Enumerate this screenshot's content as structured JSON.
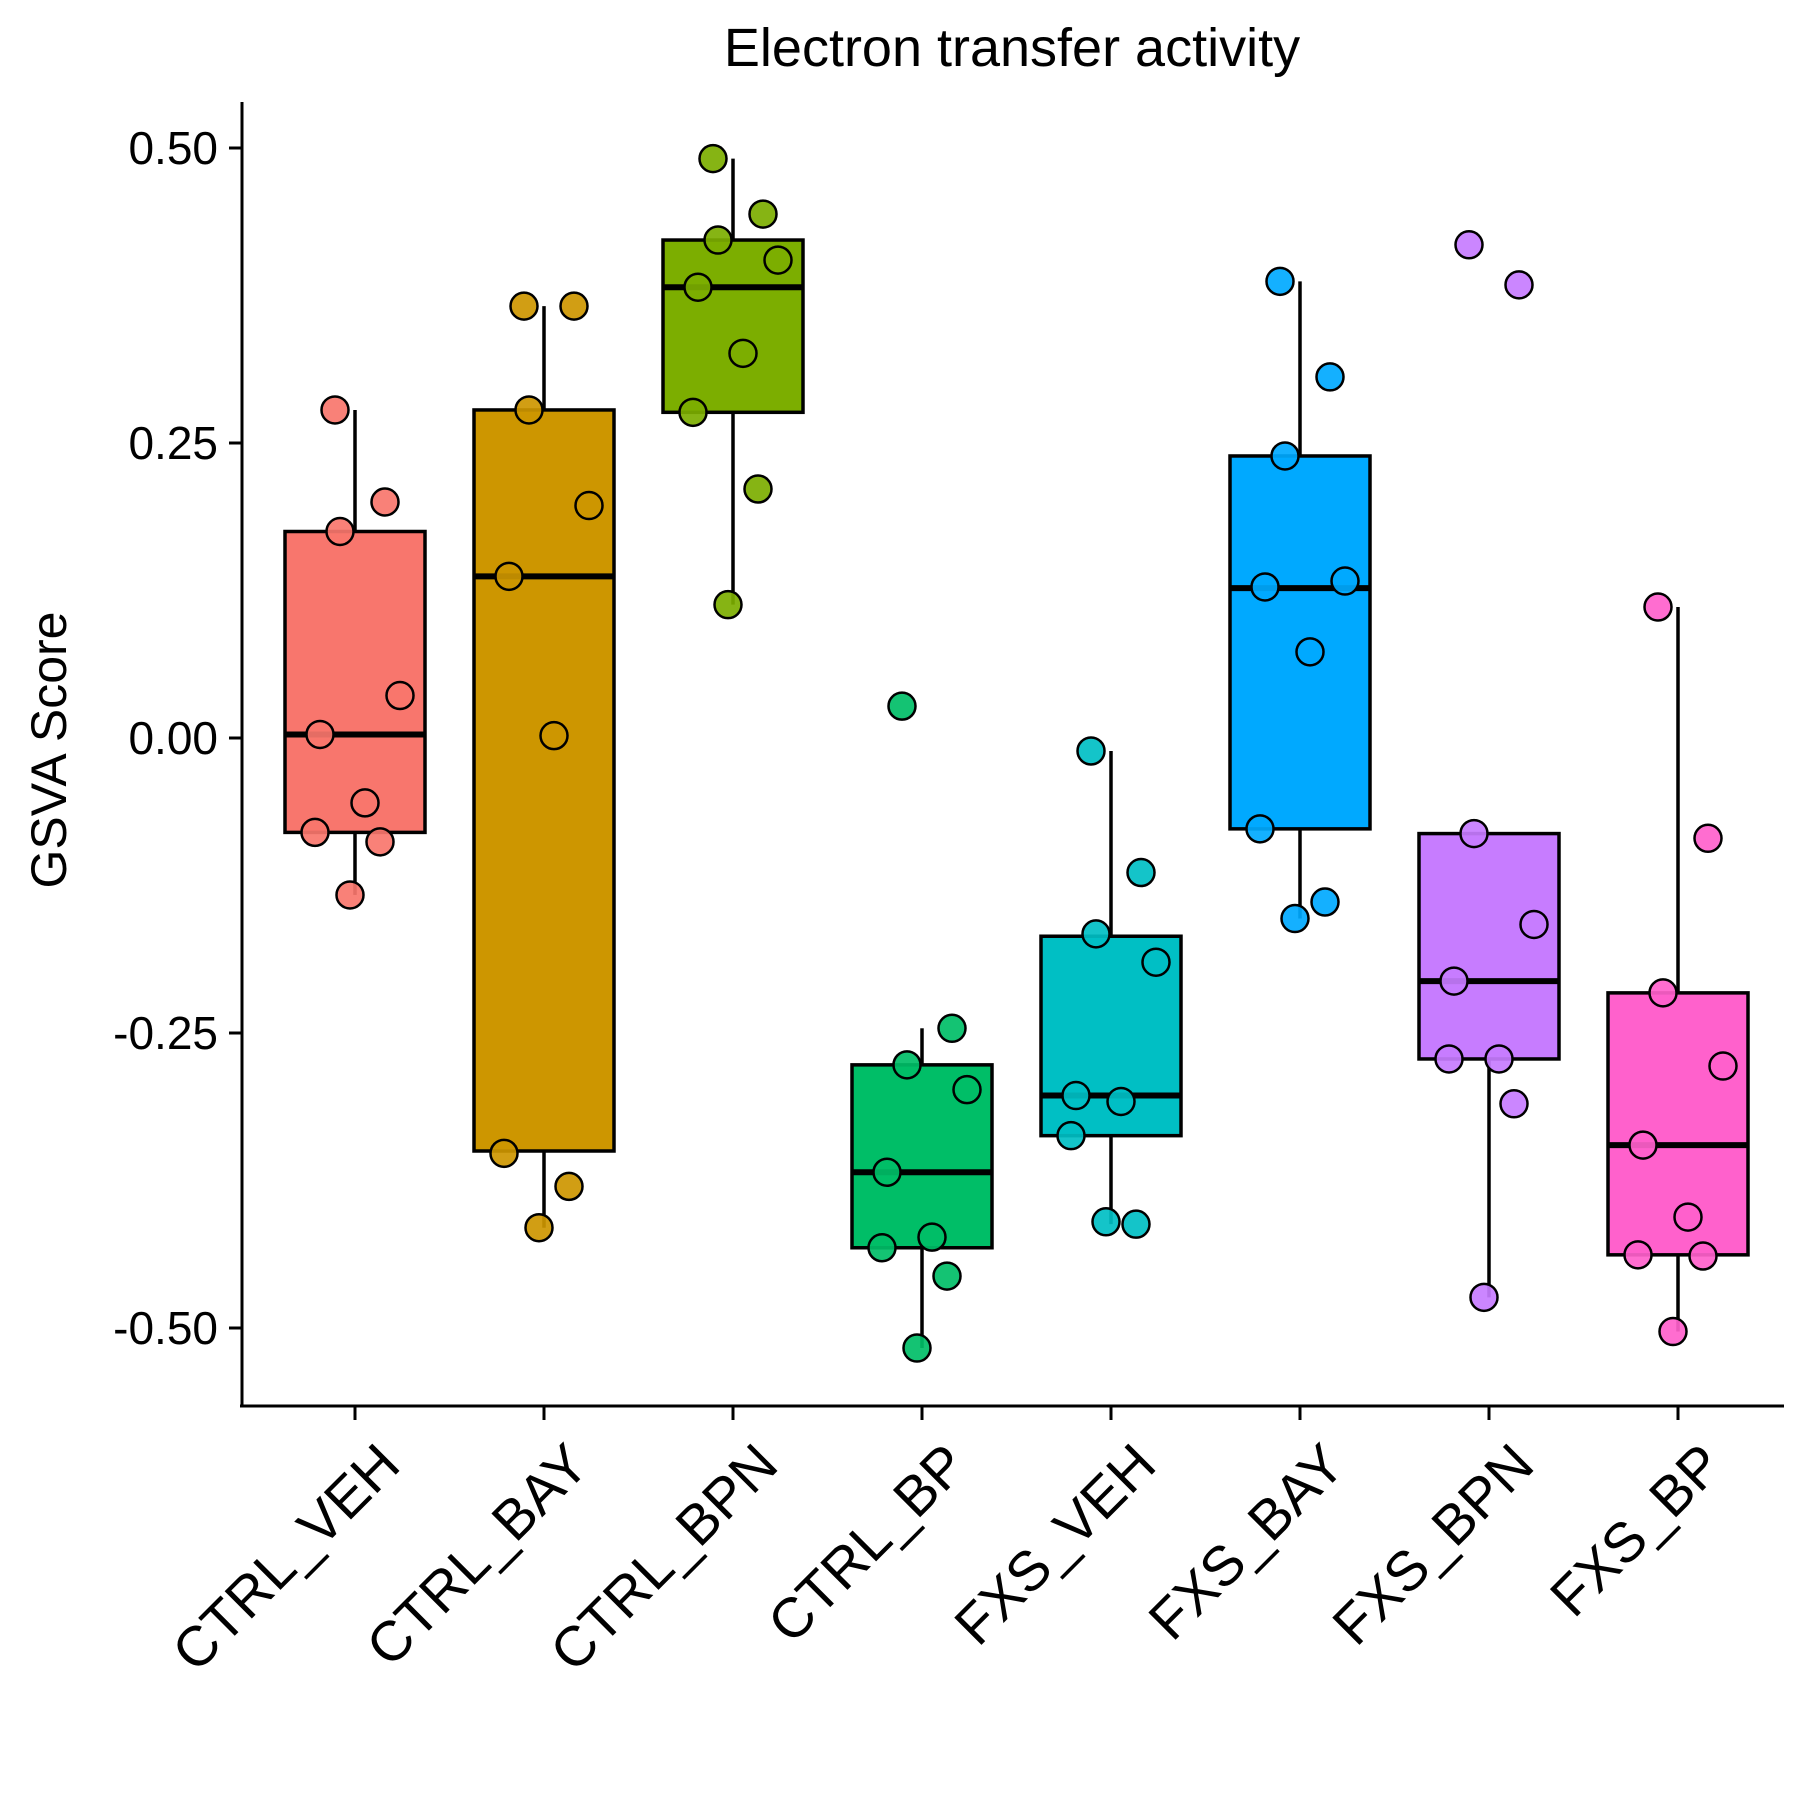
{
  "chart_data": {
    "type": "box",
    "title": "Electron transfer activity",
    "xlabel": "",
    "ylabel": "GSVA Score",
    "ylim": [
      -0.55,
      0.55
    ],
    "yticks": [
      0.5,
      0.25,
      0.0,
      -0.25,
      -0.5
    ],
    "ytick_labels": [
      "0.50",
      "0.25",
      "0.00",
      "-0.25",
      "-0.50"
    ],
    "grid": false,
    "legend": "none",
    "categories": [
      "CTRL_VEH",
      "CTRL_BAY",
      "CTRL_BPN",
      "CTRL_BP",
      "FXS_VEH",
      "FXS_BAY",
      "FXS_BPN",
      "FXS_BP"
    ],
    "groups": [
      {
        "name": "CTRL_VEH",
        "color": "#F8766D",
        "box": {
          "lower_whisker": -0.133,
          "q1": -0.08,
          "median": 0.003,
          "q3": 0.175,
          "upper_whisker": 0.278
        },
        "points": [
          0.278,
          0.2,
          0.175,
          0.036,
          0.003,
          -0.055,
          -0.08,
          -0.088,
          -0.133
        ]
      },
      {
        "name": "CTRL_BAY",
        "color": "#CD9600",
        "box": {
          "lower_whisker": -0.415,
          "q1": -0.35,
          "median": 0.137,
          "q3": 0.278,
          "upper_whisker": 0.366
        },
        "points": [
          0.366,
          0.366,
          0.278,
          0.197,
          0.137,
          0.002,
          -0.352,
          -0.38,
          -0.415
        ]
      },
      {
        "name": "CTRL_BPN",
        "color": "#7CAE00",
        "box": {
          "lower_whisker": 0.113,
          "q1": 0.276,
          "median": 0.382,
          "q3": 0.422,
          "upper_whisker": 0.491
        },
        "points": [
          0.491,
          0.444,
          0.422,
          0.405,
          0.382,
          0.326,
          0.276,
          0.211,
          0.113
        ]
      },
      {
        "name": "CTRL_BP",
        "color": "#00BE67",
        "box": {
          "lower_whisker": -0.517,
          "q1": -0.432,
          "median": -0.368,
          "q3": -0.277,
          "upper_whisker": -0.246
        },
        "points": [
          0.027,
          -0.246,
          -0.277,
          -0.298,
          -0.368,
          -0.423,
          -0.432,
          -0.456,
          -0.517
        ]
      },
      {
        "name": "FXS_VEH",
        "color": "#00BFC4",
        "box": {
          "lower_whisker": -0.412,
          "q1": -0.337,
          "median": -0.303,
          "q3": -0.168,
          "upper_whisker": -0.011
        },
        "points": [
          -0.011,
          -0.114,
          -0.166,
          -0.19,
          -0.303,
          -0.308,
          -0.337,
          -0.412,
          -0.41
        ]
      },
      {
        "name": "FXS_BAY",
        "color": "#00A9FF",
        "box": {
          "lower_whisker": -0.153,
          "q1": -0.077,
          "median": 0.127,
          "q3": 0.239,
          "upper_whisker": 0.387
        },
        "points": [
          0.387,
          0.306,
          0.239,
          0.133,
          0.128,
          0.073,
          -0.077,
          -0.139,
          -0.153
        ]
      },
      {
        "name": "FXS_BPN",
        "color": "#C77CFF",
        "box": {
          "lower_whisker": -0.474,
          "q1": -0.272,
          "median": -0.206,
          "q3": -0.081,
          "upper_whisker": -0.081
        },
        "points": [
          0.418,
          0.384,
          -0.081,
          -0.158,
          -0.206,
          -0.272,
          -0.272,
          -0.31,
          -0.474
        ]
      },
      {
        "name": "FXS_BP",
        "color": "#FF61CC",
        "box": {
          "lower_whisker": -0.503,
          "q1": -0.438,
          "median": -0.345,
          "q3": -0.216,
          "upper_whisker": 0.111
        },
        "points": [
          0.111,
          -0.085,
          -0.216,
          -0.278,
          -0.345,
          -0.406,
          -0.438,
          -0.439,
          -0.503
        ]
      }
    ]
  }
}
